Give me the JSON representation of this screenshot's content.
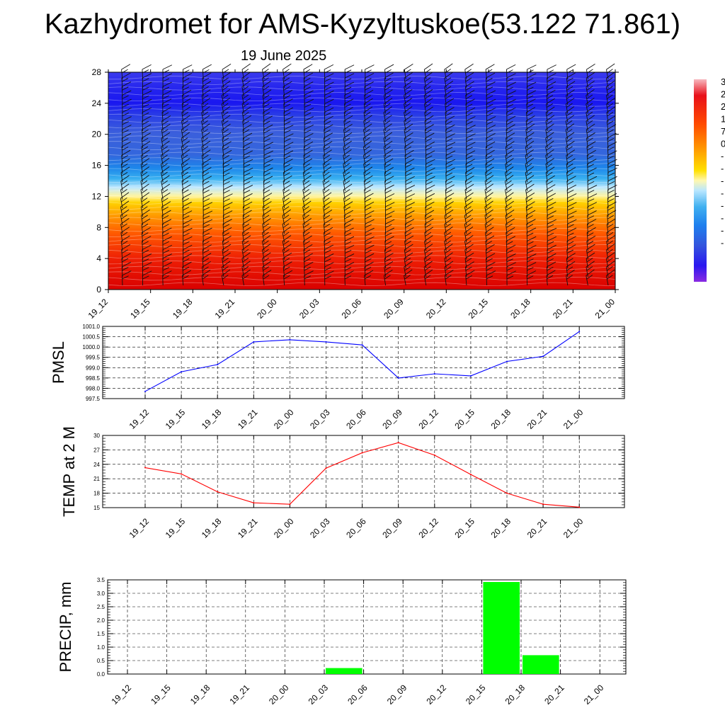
{
  "page": {
    "title": "Kazhydromet for AMS-Kyzyltuskoe(53.122 71.861)",
    "subtitle": "19 June 2025"
  },
  "colors": {
    "pmsl_line": "#0000ff",
    "temp_line": "#ff0000",
    "precip_bar": "#00ff00",
    "grid": "#000000"
  },
  "chart_data": [
    {
      "id": "cross-section",
      "type": "heatmap",
      "title": "",
      "categories": [
        "19_12",
        "19_15",
        "19_18",
        "19_21",
        "20_00",
        "20_03",
        "20_06",
        "20_09",
        "20_12",
        "20_15",
        "20_18",
        "20_21",
        "21_00"
      ],
      "ylim": [
        0,
        28
      ],
      "yticks": [
        "0",
        "4",
        "8",
        "12",
        "16",
        "20",
        "24",
        "28"
      ],
      "colorbar_labels": [
        "3",
        "2",
        "2",
        "1",
        "7",
        "0",
        "-",
        "-",
        "-",
        "-",
        "-",
        "-",
        "-",
        "-"
      ],
      "colorbar_colors": [
        "#f5b0b8",
        "#e8101a",
        "#ff4a00",
        "#ff8c00",
        "#ffd700",
        "#fff6a0",
        "#b9e6ff",
        "#48b4f0",
        "#1e90ff",
        "#2f62e0",
        "#3a3ae6",
        "#2a17f0",
        "#7020e8"
      ],
      "barbs": true
    },
    {
      "id": "pmsl",
      "type": "line",
      "ylabel": "PMSL",
      "categories": [
        "19_12",
        "19_15",
        "19_18",
        "19_21",
        "20_00",
        "20_03",
        "20_06",
        "20_09",
        "20_12",
        "20_15",
        "20_18",
        "20_21",
        "21_00"
      ],
      "values": [
        997.85,
        998.8,
        999.15,
        1000.25,
        1000.35,
        1000.25,
        1000.1,
        998.5,
        998.7,
        998.6,
        999.3,
        999.55,
        1000.75
      ],
      "ylim": [
        997.5,
        1001.0
      ],
      "yticks": [
        "997.5",
        "998.0",
        "998.5",
        "999.0",
        "999.5",
        "1000.0",
        "1000.5",
        "1001.0"
      ],
      "grid": true
    },
    {
      "id": "temp",
      "type": "line",
      "ylabel": "TEMP at 2 M",
      "categories": [
        "19_12",
        "19_15",
        "19_18",
        "19_21",
        "20_00",
        "20_03",
        "20_06",
        "20_09",
        "20_12",
        "20_15",
        "20_18",
        "20_21",
        "21_00"
      ],
      "values": [
        23.3,
        22.0,
        18.3,
        16.0,
        15.7,
        23.2,
        26.4,
        28.5,
        25.9,
        21.9,
        18.0,
        15.7,
        15.1
      ],
      "ylim": [
        15,
        30
      ],
      "yticks": [
        "15",
        "18",
        "21",
        "24",
        "27",
        "30"
      ],
      "grid": true
    },
    {
      "id": "precip",
      "type": "bar",
      "ylabel": "PRECIP, mm",
      "categories": [
        "19_12",
        "19_15",
        "19_18",
        "19_21",
        "20_00",
        "20_03",
        "20_06",
        "20_09",
        "20_12",
        "20_15",
        "20_18",
        "20_21",
        "21_00"
      ],
      "values": [
        0,
        0,
        0,
        0,
        0,
        0,
        0.22,
        0,
        0,
        0,
        3.42,
        0.7,
        0
      ],
      "ylim": [
        0,
        3.5
      ],
      "yticks": [
        "0.0",
        "0.5",
        "1.0",
        "1.5",
        "2.0",
        "2.5",
        "3.0",
        "3.5"
      ],
      "grid": true
    }
  ]
}
